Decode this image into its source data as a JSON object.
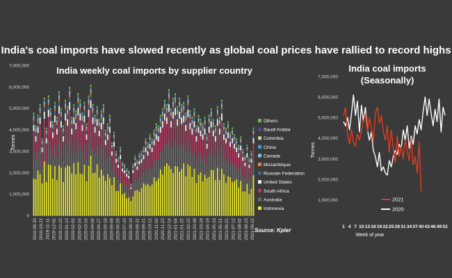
{
  "headline": "India's coal imports have slowed recently as global coal prices have rallied to record highs",
  "colors": {
    "background": "#3a3a3a",
    "text": "#ffffff",
    "axis_text": "#d8d8d8",
    "Indonesia": "#e6e62c",
    "Australia": "#6b6b6b",
    "South Africa": "#b23a5e",
    "United States": "#f2f2f2",
    "Russian Federation": "#4f5f8f",
    "Mozambique": "#e0843a",
    "Canada": "#8dc0e0",
    "China": "#3fa2d8",
    "Colombia": "#b7dd8a",
    "Saudi Arabia": "#4a4a8a",
    "Others": "#6abe45",
    "line_2021": "#e03c22",
    "line_2020": "#ffffff"
  },
  "chart_data": [
    {
      "type": "bar",
      "stacked": true,
      "title": "India weekly coal imports by supplier country",
      "ylabel": "Tonnes",
      "ylim": [
        0,
        7000000
      ],
      "yticks": [
        "0",
        "1,000,000",
        "2,000,000",
        "3,000,000",
        "4,000,000",
        "5,000,000",
        "6,000,000",
        "7,000,000"
      ],
      "xtick_labels": [
        "2019-09-30",
        "2019-10-21",
        "2019-11-11",
        "2019-12-02",
        "2019-12-23",
        "2020-01-13",
        "2020-02-03",
        "2020-02-24",
        "2020-03-16",
        "2020-04-06",
        "2020-04-27",
        "2020-05-18",
        "2020-06-08",
        "2020-06-29",
        "2020-07-20",
        "2020-08-10",
        "2020-08-31",
        "2020-09-21",
        "2020-10-12",
        "2020-11-02",
        "2020-11-23",
        "2020-12-14",
        "2021-01-04",
        "2021-01-25",
        "2021-02-15",
        "2021-03-08",
        "2021-03-29",
        "2021-04-19",
        "2021-05-10",
        "2021-05-31",
        "2021-06-21",
        "2021-07-12",
        "2021-08-02",
        "2021-08-23",
        "2021-09-13"
      ],
      "source": "Source: Kpler",
      "legend_order_top_to_bottom": [
        "Others",
        "Saudi Arabia",
        "Colombia",
        "China",
        "Canada",
        "Mozambique",
        "Russian Federation",
        "United States",
        "South Africa",
        "Australia",
        "Indonesia"
      ],
      "stack_order_bottom_to_top": [
        "Indonesia",
        "Australia",
        "South Africa",
        "United States",
        "Russian Federation",
        "Mozambique",
        "Canada",
        "China",
        "Colombia",
        "Saudi Arabia",
        "Others"
      ],
      "weeks": 105,
      "totals": [
        4800000,
        4200000,
        4700000,
        5200000,
        3600000,
        5500000,
        4100000,
        5600000,
        5000000,
        4400000,
        5300000,
        4600000,
        5800000,
        5000000,
        4200000,
        5400000,
        5100000,
        6000000,
        4600000,
        5200000,
        4900000,
        5700000,
        5400000,
        4800000,
        5300000,
        4300000,
        5600000,
        6100000,
        5200000,
        4700000,
        5100000,
        4500000,
        4900000,
        5200000,
        4000000,
        4300000,
        4700000,
        3400000,
        3900000,
        3000000,
        2700000,
        3200000,
        2500000,
        2400000,
        2200000,
        2100000,
        1500000,
        2400000,
        2800000,
        2600000,
        2900000,
        3000000,
        3200000,
        3600000,
        3400000,
        3800000,
        3600000,
        4000000,
        4300000,
        4200000,
        4700000,
        5000000,
        5400000,
        5200000,
        5900000,
        5000000,
        5500000,
        5700000,
        5100000,
        5500000,
        5200000,
        5300000,
        4800000,
        5600000,
        4900000,
        4600000,
        5000000,
        4200000,
        4700000,
        4500000,
        4300000,
        4600000,
        3800000,
        4700000,
        5000000,
        4500000,
        4200000,
        5100000,
        4600000,
        5400000,
        4300000,
        4100000,
        4400000,
        3900000,
        4100000,
        3800000,
        3600000,
        3300000,
        3700000,
        3100000,
        2800000,
        3300000,
        2700000,
        3000000,
        4100000
      ],
      "share": {
        "Indonesia": 0.42,
        "Australia": 0.2,
        "South Africa": 0.2,
        "United States": 0.06,
        "Russian Federation": 0.04,
        "Mozambique": 0.02,
        "Canada": 0.02,
        "China": 0.005,
        "Colombia": 0.005,
        "Saudi Arabia": 0.01,
        "Others": 0.02
      }
    },
    {
      "type": "line",
      "title_lines": [
        "India coal imports",
        "(Seasonally)"
      ],
      "xlabel": "Week of year",
      "ylabel": "Tonnes",
      "ylim": [
        0,
        7000000
      ],
      "yticks": [
        "1,000,000",
        "2,000,000",
        "3,000,000",
        "4,000,000",
        "5,000,000",
        "6,000,000",
        "7,000,000"
      ],
      "xlim": [
        1,
        52
      ],
      "xticks": [
        "1",
        "4",
        "7",
        "10",
        "13",
        "16",
        "19",
        "22",
        "25",
        "28",
        "31",
        "34",
        "37",
        "40",
        "43",
        "46",
        "49",
        "52"
      ],
      "series": [
        {
          "name": "2021",
          "x": [
            1,
            2,
            3,
            4,
            5,
            6,
            7,
            8,
            9,
            10,
            11,
            12,
            13,
            14,
            15,
            16,
            17,
            18,
            19,
            20,
            21,
            22,
            23,
            24,
            25,
            26,
            27,
            28,
            29,
            30,
            31,
            32,
            33,
            34,
            35,
            36,
            37,
            38,
            39,
            40
          ],
          "values": [
            5100000,
            5500000,
            4200000,
            3700000,
            4400000,
            3800000,
            3600000,
            4200000,
            3900000,
            4400000,
            4800000,
            5200000,
            4300000,
            5000000,
            4500000,
            3800000,
            5200000,
            5500000,
            4700000,
            5100000,
            4300000,
            3900000,
            4600000,
            3300000,
            4400000,
            3500000,
            2800000,
            4100000,
            3100000,
            3600000,
            3000000,
            3900000,
            3400000,
            2900000,
            4000000,
            2700000,
            3100000,
            2300000,
            3800000,
            1400000
          ]
        },
        {
          "name": "2020",
          "x": [
            1,
            2,
            3,
            4,
            5,
            6,
            7,
            8,
            9,
            10,
            11,
            12,
            13,
            14,
            15,
            16,
            17,
            18,
            19,
            20,
            21,
            22,
            23,
            24,
            25,
            26,
            27,
            28,
            29,
            30,
            31,
            32,
            33,
            34,
            35,
            36,
            37,
            38,
            39,
            40,
            41,
            42,
            43,
            44,
            45,
            46,
            47,
            48,
            49,
            50,
            51,
            52
          ],
          "values": [
            4800000,
            4600000,
            5000000,
            4400000,
            5200000,
            6100000,
            5100000,
            5800000,
            4300000,
            5600000,
            4800000,
            5500000,
            4400000,
            3900000,
            4300000,
            3400000,
            3100000,
            2600000,
            3300000,
            2400000,
            2600000,
            2300000,
            2200000,
            2900000,
            2600000,
            3100000,
            3400000,
            3200000,
            3700000,
            3500000,
            4400000,
            3900000,
            4600000,
            3500000,
            4100000,
            3700000,
            4600000,
            4200000,
            4900000,
            4400000,
            5300000,
            6000000,
            5100000,
            5900000,
            5200000,
            4600000,
            5400000,
            4800000,
            5900000,
            4300000,
            5500000,
            5100000
          ]
        }
      ],
      "legend": [
        "2021",
        "2020"
      ]
    }
  ]
}
